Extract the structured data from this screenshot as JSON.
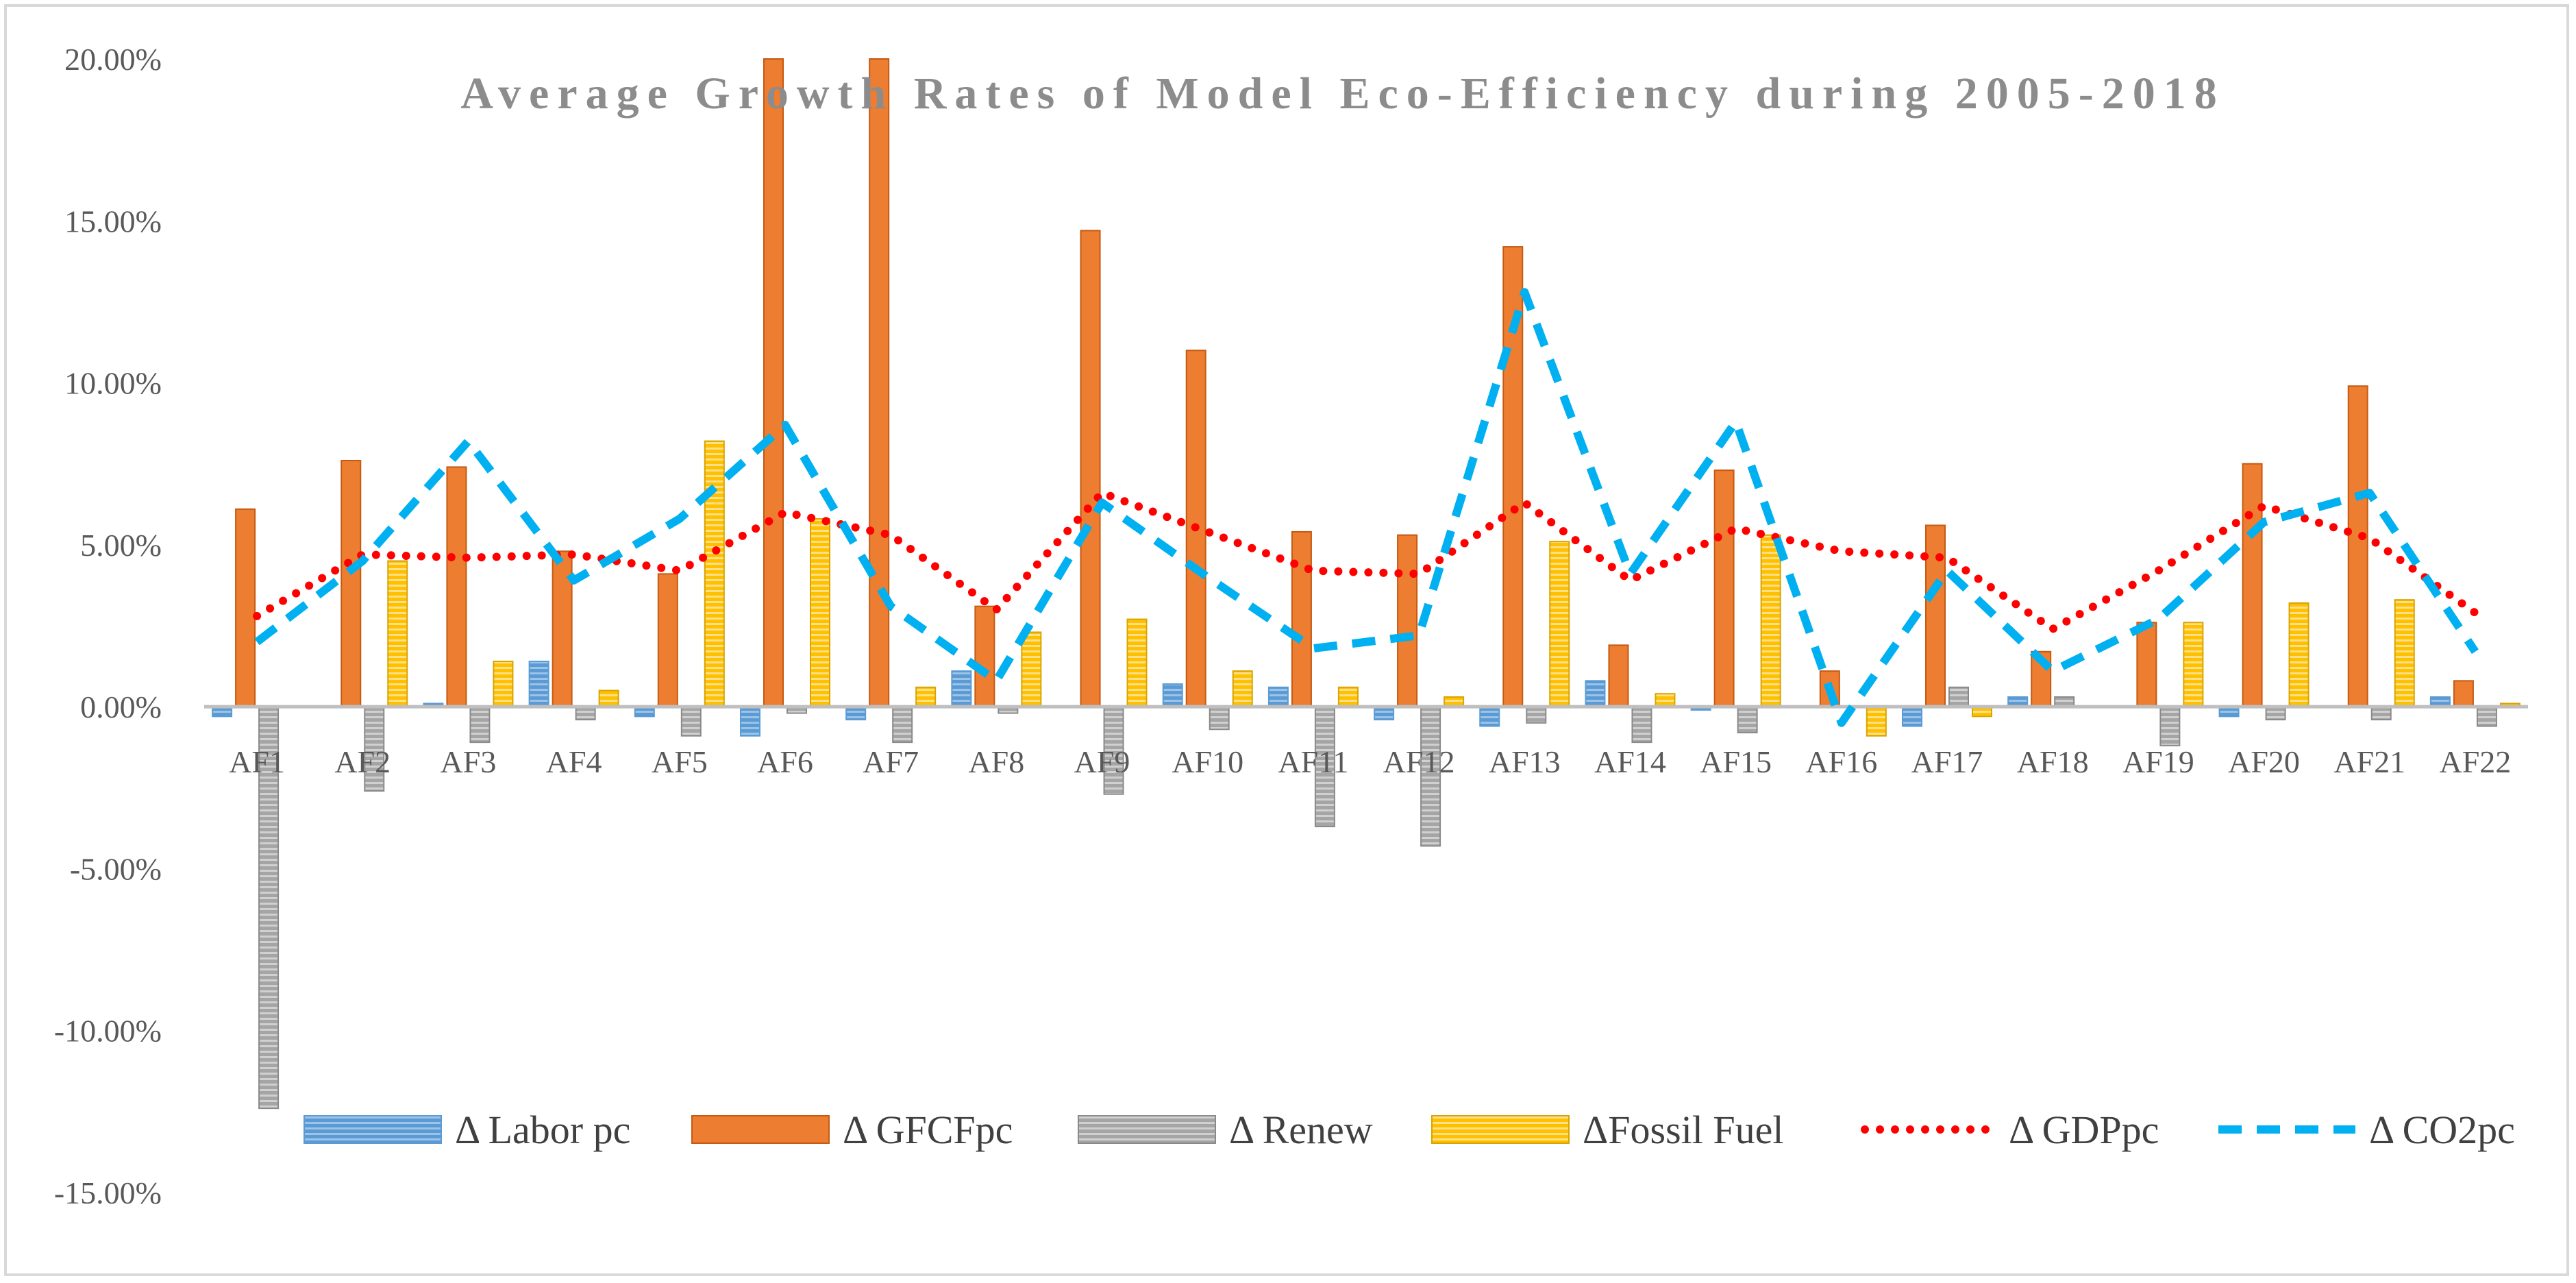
{
  "chart_data": {
    "type": "bar",
    "title": "Average Growth Rates of Model Eco-Efficiency during 2005-2018",
    "xlabel": "",
    "ylabel": "",
    "ylim": [
      -15,
      20
    ],
    "y_ticks": [
      "20.00%",
      "15.00%",
      "10.00%",
      "5.00%",
      "0.00%",
      "-5.00%",
      "-10.00%",
      "-15.00%"
    ],
    "y_tick_values": [
      20,
      15,
      10,
      5,
      0,
      -5,
      -10,
      -15
    ],
    "categories": [
      "AF1",
      "AF2",
      "AF3",
      "AF4",
      "AF5",
      "AF6",
      "AF7",
      "AF8",
      "AF9",
      "AF10",
      "AF11",
      "AF12",
      "AF13",
      "AF14",
      "AF15",
      "AF16",
      "AF17",
      "AF18",
      "AF19",
      "AF20",
      "AF21",
      "AF22"
    ],
    "bar_series": [
      {
        "name": "Δ Labor pc",
        "color": "#5b9bd5",
        "values": [
          -0.3,
          0.0,
          0.1,
          1.4,
          -0.3,
          -0.9,
          -0.4,
          1.1,
          0.0,
          0.7,
          0.6,
          -0.4,
          -0.6,
          0.8,
          -0.1,
          0.0,
          -0.6,
          0.3,
          0.0,
          -0.3,
          0.0,
          0.3
        ]
      },
      {
        "name": "Δ GFCFpc",
        "color": "#ed7d31",
        "values": [
          6.1,
          7.6,
          7.4,
          4.8,
          4.1,
          20.0,
          20.0,
          3.1,
          14.7,
          11.0,
          5.4,
          5.3,
          14.2,
          1.9,
          7.3,
          1.1,
          5.6,
          1.7,
          2.6,
          7.5,
          9.9,
          0.8
        ]
      },
      {
        "name": "Δ Renew",
        "color": "#a5a5a5",
        "values": [
          -12.4,
          -2.6,
          -1.1,
          -0.4,
          -0.9,
          -0.2,
          -1.1,
          -0.2,
          -2.7,
          -0.7,
          -3.7,
          -4.3,
          -0.5,
          -1.1,
          -0.8,
          0.0,
          0.6,
          0.3,
          -1.2,
          -0.4,
          -0.4,
          -0.6
        ]
      },
      {
        "name": "ΔFossil Fuel",
        "color": "#ffc000",
        "values": [
          0.0,
          4.5,
          1.4,
          0.5,
          8.2,
          5.8,
          0.6,
          2.3,
          2.7,
          1.1,
          0.6,
          0.3,
          5.1,
          0.4,
          5.3,
          -0.9,
          -0.3,
          0.0,
          2.6,
          3.2,
          3.3,
          0.1
        ]
      }
    ],
    "line_series": [
      {
        "name": "Δ GDPpc",
        "color": "#ff0000",
        "style": "dotted",
        "values": [
          2.8,
          4.7,
          4.6,
          4.7,
          4.2,
          6.0,
          5.3,
          3.0,
          6.6,
          5.4,
          4.2,
          4.1,
          6.3,
          3.9,
          5.5,
          4.8,
          4.6,
          2.4,
          4.2,
          6.2,
          5.2,
          2.9
        ]
      },
      {
        "name": "Δ CO2pc",
        "color": "#00b0f0",
        "style": "dashed",
        "values": [
          2.0,
          4.5,
          8.2,
          3.9,
          5.8,
          8.7,
          3.1,
          0.8,
          6.3,
          4.0,
          1.8,
          2.2,
          12.8,
          4.1,
          8.8,
          -0.5,
          4.2,
          1.1,
          2.7,
          5.7,
          6.6,
          1.7
        ]
      }
    ],
    "legend_position": "bottom-right",
    "legend": [
      "Δ Labor pc",
      "Δ GFCFpc",
      "Δ Renew",
      "ΔFossil Fuel",
      "Δ GDPpc",
      "Δ CO2pc"
    ]
  }
}
